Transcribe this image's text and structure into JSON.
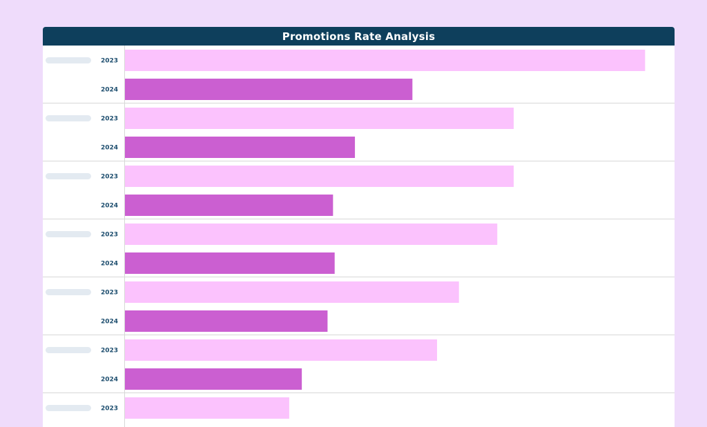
{
  "title": "Promotions Rate Analysis",
  "colors": {
    "background": "#efdcfb",
    "header": "#0e3f5c",
    "bar_2023": "#fbc2fd",
    "bar_2024": "#cb5fd1",
    "placeholder": "#e3eaf1",
    "year_text": "#1c4d6e",
    "divider": "#d7d7d7"
  },
  "chart_data": {
    "type": "bar",
    "orientation": "horizontal",
    "title": "Promotions Rate Analysis",
    "category_labels_visible": false,
    "xlabel": "",
    "ylabel": "",
    "xlim": [
      0,
      100
    ],
    "grid": false,
    "legend": "none",
    "groups": [
      {
        "rows": [
          {
            "year": "2023",
            "value": 95
          },
          {
            "year": "2024",
            "value": 52.5
          }
        ]
      },
      {
        "rows": [
          {
            "year": "2023",
            "value": 71
          },
          {
            "year": "2024",
            "value": 42
          }
        ]
      },
      {
        "rows": [
          {
            "year": "2023",
            "value": 71
          },
          {
            "year": "2024",
            "value": 38
          }
        ]
      },
      {
        "rows": [
          {
            "year": "2023",
            "value": 68
          },
          {
            "year": "2024",
            "value": 38.3
          }
        ]
      },
      {
        "rows": [
          {
            "year": "2023",
            "value": 61
          },
          {
            "year": "2024",
            "value": 37
          }
        ]
      },
      {
        "rows": [
          {
            "year": "2023",
            "value": 57
          },
          {
            "year": "2024",
            "value": 32.3
          }
        ]
      },
      {
        "rows": [
          {
            "year": "2023",
            "value": 30
          }
        ]
      }
    ]
  }
}
